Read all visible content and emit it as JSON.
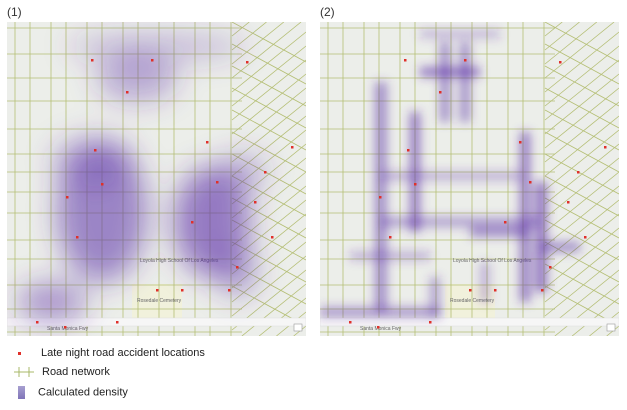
{
  "panels": [
    {
      "label": "(1)"
    },
    {
      "label": "(2)"
    }
  ],
  "map_labels": {
    "freeway": "Santa Monica Fwy",
    "cemetery": "Rosedale Cemetery",
    "school": "Loyola High School Of Los Angeles"
  },
  "legend": {
    "items": [
      {
        "label": "Late night road accident locations",
        "icon": "red-dot-icon",
        "color": "#e0302a"
      },
      {
        "label": "Road network",
        "icon": "road-cross-icon",
        "color": "#a9b86a"
      },
      {
        "label": "Calculated density",
        "icon": "density-swatch-icon",
        "color": "#8a7fbf"
      }
    ]
  },
  "colors": {
    "road": "#b5bf75",
    "density": "#5a2fa8",
    "basemap": "#eceeea",
    "accident": "#e0302a"
  }
}
